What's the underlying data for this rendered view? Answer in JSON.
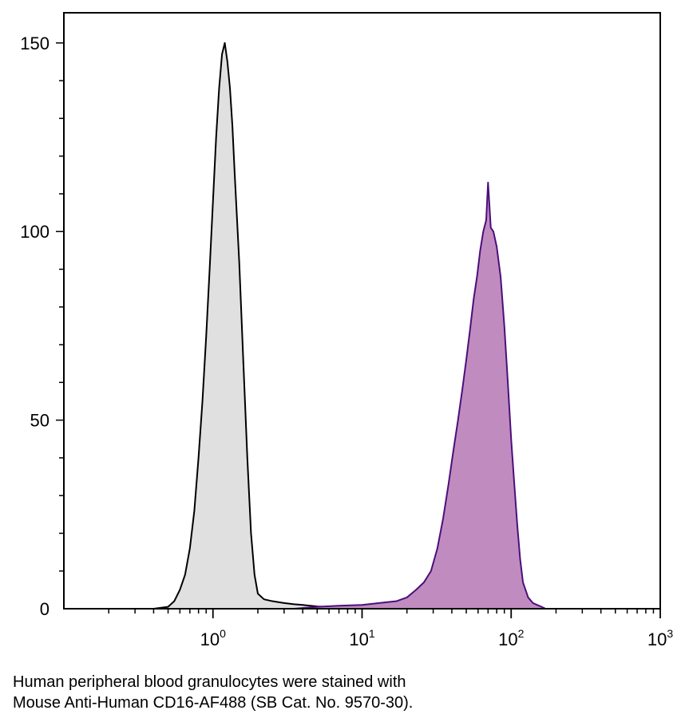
{
  "caption": {
    "line1": "Human peripheral blood granulocytes were stained with",
    "line2": "Mouse Anti-Human CD16-AF488 (SB Cat. No. 9570-30)."
  },
  "chart_data": {
    "type": "area",
    "xscale": "log",
    "xlim": [
      0.1,
      1000
    ],
    "ylim": [
      0,
      158
    ],
    "yticks": [
      0,
      50,
      100,
      150
    ],
    "xticks": [
      {
        "value": 1,
        "base": "10",
        "exp": "0"
      },
      {
        "value": 10,
        "base": "10",
        "exp": "1"
      },
      {
        "value": 100,
        "base": "10",
        "exp": "2"
      },
      {
        "value": 1000,
        "base": "10",
        "exp": "3"
      }
    ],
    "grid": false,
    "legend": "none",
    "series": [
      {
        "fill": "#e0e0e0",
        "stroke": "#000000",
        "points": [
          [
            0.4,
            0
          ],
          [
            0.5,
            0.5
          ],
          [
            0.55,
            2
          ],
          [
            0.6,
            5
          ],
          [
            0.65,
            9
          ],
          [
            0.7,
            16
          ],
          [
            0.75,
            26
          ],
          [
            0.8,
            40
          ],
          [
            0.85,
            55
          ],
          [
            0.9,
            72
          ],
          [
            0.95,
            90
          ],
          [
            1.0,
            108
          ],
          [
            1.05,
            125
          ],
          [
            1.1,
            138
          ],
          [
            1.15,
            147
          ],
          [
            1.2,
            150
          ],
          [
            1.25,
            145
          ],
          [
            1.3,
            138
          ],
          [
            1.35,
            128
          ],
          [
            1.4,
            115
          ],
          [
            1.5,
            92
          ],
          [
            1.6,
            65
          ],
          [
            1.7,
            40
          ],
          [
            1.8,
            20
          ],
          [
            1.9,
            9
          ],
          [
            2.0,
            4
          ],
          [
            2.2,
            2.5
          ],
          [
            2.5,
            2
          ],
          [
            3.0,
            1.5
          ],
          [
            3.5,
            1.2
          ],
          [
            4.0,
            1
          ],
          [
            5.0,
            0.6
          ],
          [
            7.0,
            0.3
          ],
          [
            10.0,
            0
          ]
        ]
      },
      {
        "fill": "#c08cc0",
        "stroke": "#4b0f7a",
        "points": [
          [
            3.5,
            0
          ],
          [
            5.0,
            0.5
          ],
          [
            7.0,
            0.8
          ],
          [
            10.0,
            1
          ],
          [
            13.0,
            1.5
          ],
          [
            17.0,
            2
          ],
          [
            20.0,
            3
          ],
          [
            23.0,
            5
          ],
          [
            26.0,
            7
          ],
          [
            29.0,
            10
          ],
          [
            32.0,
            16
          ],
          [
            35.0,
            24
          ],
          [
            38.0,
            33
          ],
          [
            41.0,
            42
          ],
          [
            44.0,
            50
          ],
          [
            47.0,
            58
          ],
          [
            50.0,
            66
          ],
          [
            53.0,
            74
          ],
          [
            56.0,
            82
          ],
          [
            59.0,
            88
          ],
          [
            62.0,
            95
          ],
          [
            65.0,
            100
          ],
          [
            68.0,
            103
          ],
          [
            70.0,
            113
          ],
          [
            73.0,
            101
          ],
          [
            76.0,
            100
          ],
          [
            80.0,
            96
          ],
          [
            85.0,
            88
          ],
          [
            90.0,
            75
          ],
          [
            95.0,
            60
          ],
          [
            100.0,
            45
          ],
          [
            105.0,
            33
          ],
          [
            110.0,
            22
          ],
          [
            115.0,
            13
          ],
          [
            120.0,
            7
          ],
          [
            130.0,
            3
          ],
          [
            140.0,
            1.5
          ],
          [
            160.0,
            0.5
          ],
          [
            170.0,
            0
          ]
        ]
      }
    ]
  }
}
